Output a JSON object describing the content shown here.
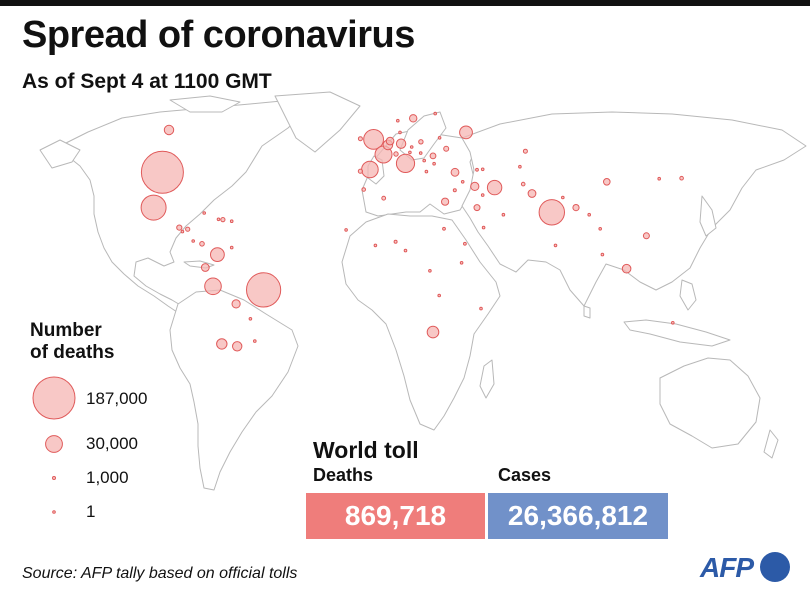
{
  "title": "Spread of coronavirus",
  "subtitle": "As of Sept 4 at 1100 GMT",
  "legend": {
    "title_line1": "Number",
    "title_line2": "of deaths",
    "items": [
      {
        "value": 187000,
        "label": "187,000"
      },
      {
        "value": 30000,
        "label": "30,000"
      },
      {
        "value": 1000,
        "label": "1,000"
      },
      {
        "value": 1,
        "label": "1"
      }
    ]
  },
  "world_toll": {
    "title": "World toll",
    "deaths_label": "Deaths",
    "deaths_value": "869,718",
    "cases_label": "Cases",
    "cases_value": "26,366,812"
  },
  "source": "Source: AFP tally based on official tolls",
  "logo": "AFP",
  "colors": {
    "bubble_fill": "#f5b5b3",
    "bubble_stroke": "#e05a5a",
    "deaths_box": "#ef7d7b",
    "cases_box": "#7191c9",
    "land_stroke": "#b8b8b8",
    "logo": "#2c5aa7"
  },
  "bubbles": [
    {
      "region": "United States",
      "lon": -98,
      "lat": 39,
      "deaths": 187000
    },
    {
      "region": "Brazil",
      "lon": -52,
      "lat": -11,
      "deaths": 124000
    },
    {
      "region": "India",
      "lon": 79,
      "lat": 22,
      "deaths": 68000
    },
    {
      "region": "Mexico",
      "lon": -102,
      "lat": 24,
      "deaths": 66000
    },
    {
      "region": "United Kingdom",
      "lon": -2,
      "lat": 53,
      "deaths": 41500
    },
    {
      "region": "Italy",
      "lon": 12.5,
      "lat": 42.8,
      "deaths": 35500
    },
    {
      "region": "France",
      "lon": 2.5,
      "lat": 46.6,
      "deaths": 30700
    },
    {
      "region": "Spain",
      "lon": -3.7,
      "lat": 40.2,
      "deaths": 29200
    },
    {
      "region": "Peru",
      "lon": -75,
      "lat": -9.5,
      "deaths": 29000
    },
    {
      "region": "Iran",
      "lon": 53,
      "lat": 32.5,
      "deaths": 22000
    },
    {
      "region": "Colombia",
      "lon": -73,
      "lat": 4,
      "deaths": 20000
    },
    {
      "region": "Russia",
      "lon": 40,
      "lat": 56,
      "deaths": 17500
    },
    {
      "region": "Chile",
      "lon": -71,
      "lat": -34,
      "deaths": 11500
    },
    {
      "region": "South Africa",
      "lon": 25,
      "lat": -29,
      "deaths": 14400
    },
    {
      "region": "Argentina",
      "lon": -64,
      "lat": -35,
      "deaths": 9400
    },
    {
      "region": "Belgium",
      "lon": 4.5,
      "lat": 50.7,
      "deaths": 9900
    },
    {
      "region": "Germany",
      "lon": 10.5,
      "lat": 51.2,
      "deaths": 9300
    },
    {
      "region": "Canada",
      "lon": -95,
      "lat": 57,
      "deaths": 9200
    },
    {
      "region": "Indonesia",
      "lon": 113,
      "lat": -2,
      "deaths": 7800
    },
    {
      "region": "Ecuador",
      "lon": -78.5,
      "lat": -1.5,
      "deaths": 6600
    },
    {
      "region": "Egypt",
      "lon": 30.5,
      "lat": 26.5,
      "deaths": 5500
    },
    {
      "region": "Iraq",
      "lon": 44,
      "lat": 33,
      "deaths": 7000
    },
    {
      "region": "Turkey",
      "lon": 35,
      "lat": 39,
      "deaths": 6400
    },
    {
      "region": "Netherlands",
      "lon": 5.5,
      "lat": 52.3,
      "deaths": 6200
    },
    {
      "region": "Sweden",
      "lon": 16,
      "lat": 62,
      "deaths": 5800
    },
    {
      "region": "Pakistan",
      "lon": 70,
      "lat": 30,
      "deaths": 6300
    },
    {
      "region": "Bolivia",
      "lon": -64.5,
      "lat": -17,
      "deaths": 7000
    },
    {
      "region": "China",
      "lon": 104,
      "lat": 35,
      "deaths": 4700
    },
    {
      "region": "Philippines",
      "lon": 122,
      "lat": 12,
      "deaths": 3700
    },
    {
      "region": "Saudi Arabia",
      "lon": 45,
      "lat": 24,
      "deaths": 3800
    },
    {
      "region": "Bangladesh",
      "lon": 90,
      "lat": 24,
      "deaths": 4200
    },
    {
      "region": "Romania",
      "lon": 25,
      "lat": 46,
      "deaths": 3600
    },
    {
      "region": "Guatemala",
      "lon": -90.3,
      "lat": 15.5,
      "deaths": 2800
    },
    {
      "region": "Honduras",
      "lon": -86.5,
      "lat": 14.8,
      "deaths": 1900
    },
    {
      "region": "Ukraine",
      "lon": 31,
      "lat": 49,
      "deaths": 2700
    },
    {
      "region": "Poland",
      "lon": 19.5,
      "lat": 52,
      "deaths": 2000
    },
    {
      "region": "Portugal",
      "lon": -8,
      "lat": 39.5,
      "deaths": 1800
    },
    {
      "region": "Switzerland",
      "lon": 8.2,
      "lat": 46.8,
      "deaths": 2000
    },
    {
      "region": "Ireland",
      "lon": -8,
      "lat": 53.3,
      "deaths": 1780
    },
    {
      "region": "Panama",
      "lon": -80,
      "lat": 8.6,
      "deaths": 2300
    },
    {
      "region": "Dominican Republic",
      "lon": -70.5,
      "lat": 18.9,
      "deaths": 1800
    },
    {
      "region": "Afghanistan",
      "lon": 66,
      "lat": 34,
      "deaths": 1400
    },
    {
      "region": "Algeria",
      "lon": 2.6,
      "lat": 28,
      "deaths": 1500
    },
    {
      "region": "Kazakhstan",
      "lon": 67,
      "lat": 48,
      "deaths": 1700
    },
    {
      "region": "Morocco",
      "lon": -6.5,
      "lat": 31.7,
      "deaths": 1400
    },
    {
      "region": "Japan",
      "lon": 138,
      "lat": 36.5,
      "deaths": 1300
    },
    {
      "region": "Venezuela",
      "lon": -66.5,
      "lat": 7,
      "deaths": 300
    },
    {
      "region": "Costa Rica",
      "lon": -84,
      "lat": 9.8,
      "deaths": 600
    },
    {
      "region": "El Salvador",
      "lon": -88.9,
      "lat": 13.8,
      "deaths": 700
    },
    {
      "region": "Cuba",
      "lon": -79,
      "lat": 21.7,
      "deaths": 90
    },
    {
      "region": "Haiti",
      "lon": -72.5,
      "lat": 19,
      "deaths": 200
    },
    {
      "region": "Puerto Rico",
      "lon": -66.5,
      "lat": 18.2,
      "deaths": 370
    },
    {
      "region": "Paraguay",
      "lon": -58,
      "lat": -23.3,
      "deaths": 360
    },
    {
      "region": "Uruguay",
      "lon": -56,
      "lat": -32.8,
      "deaths": 45
    },
    {
      "region": "Nigeria",
      "lon": 8,
      "lat": 9.5,
      "deaths": 1000
    },
    {
      "region": "Kenya",
      "lon": 38,
      "lat": 0.5,
      "deaths": 580
    },
    {
      "region": "Ethiopia",
      "lon": 39.5,
      "lat": 8.6,
      "deaths": 850
    },
    {
      "region": "Sudan",
      "lon": 30,
      "lat": 15,
      "deaths": 820
    },
    {
      "region": "Cameroon",
      "lon": 12.5,
      "lat": 5.7,
      "deaths": 400
    },
    {
      "region": "Ghana",
      "lon": -1.2,
      "lat": 7.9,
      "deaths": 280
    },
    {
      "region": "Senegal",
      "lon": -14.5,
      "lat": 14.5,
      "deaths": 280
    },
    {
      "region": "Madagascar",
      "lon": 46.8,
      "lat": -19,
      "deaths": 180
    },
    {
      "region": "Zambia",
      "lon": 27.8,
      "lat": -13.4,
      "deaths": 300
    },
    {
      "region": "DR Congo",
      "lon": 23.6,
      "lat": -2.9,
      "deaths": 250
    },
    {
      "region": "Israel",
      "lon": 34.9,
      "lat": 31.4,
      "deaths": 1000
    },
    {
      "region": "Oman",
      "lon": 57,
      "lat": 21,
      "deaths": 700
    },
    {
      "region": "Kuwait",
      "lon": 47.6,
      "lat": 29.3,
      "deaths": 500
    },
    {
      "region": "Uzbekistan",
      "lon": 64.5,
      "lat": 41.4,
      "deaths": 300
    },
    {
      "region": "Myanmar",
      "lon": 96,
      "lat": 21,
      "deaths": 10
    },
    {
      "region": "Nepal",
      "lon": 84,
      "lat": 28.3,
      "deaths": 280
    },
    {
      "region": "Sri Lanka",
      "lon": 80.7,
      "lat": 7.9,
      "deaths": 12
    },
    {
      "region": "Malaysia",
      "lon": 102,
      "lat": 4,
      "deaths": 130
    },
    {
      "region": "Thailand",
      "lon": 101,
      "lat": 15,
      "deaths": 58
    },
    {
      "region": "South Korea",
      "lon": 127.8,
      "lat": 36.3,
      "deaths": 330
    },
    {
      "region": "Australia",
      "lon": 134,
      "lat": -25,
      "deaths": 700
    },
    {
      "region": "Hungary",
      "lon": 19.4,
      "lat": 47.2,
      "deaths": 620
    },
    {
      "region": "Czech Republic",
      "lon": 15.3,
      "lat": 49.8,
      "deaths": 430
    },
    {
      "region": "Austria",
      "lon": 14.5,
      "lat": 47.5,
      "deaths": 740
    },
    {
      "region": "Denmark",
      "lon": 10,
      "lat": 56,
      "deaths": 630
    },
    {
      "region": "Belarus",
      "lon": 28,
      "lat": 53.7,
      "deaths": 650
    },
    {
      "region": "Serbia",
      "lon": 21,
      "lat": 44,
      "deaths": 720
    },
    {
      "region": "Greece",
      "lon": 22,
      "lat": 39.3,
      "deaths": 270
    },
    {
      "region": "Bulgaria",
      "lon": 25.5,
      "lat": 42.7,
      "deaths": 650
    },
    {
      "region": "Finland",
      "lon": 26,
      "lat": 64,
      "deaths": 335
    },
    {
      "region": "Norway",
      "lon": 9,
      "lat": 61,
      "deaths": 264
    },
    {
      "region": "Yemen",
      "lon": 48,
      "lat": 15.5,
      "deaths": 580
    },
    {
      "region": "Syria",
      "lon": 38.5,
      "lat": 35,
      "deaths": 120
    },
    {
      "region": "Azerbaijan",
      "lon": 47.6,
      "lat": 40.3,
      "deaths": 560
    },
    {
      "region": "Armenia",
      "lon": 45,
      "lat": 40.1,
      "deaths": 890
    }
  ]
}
